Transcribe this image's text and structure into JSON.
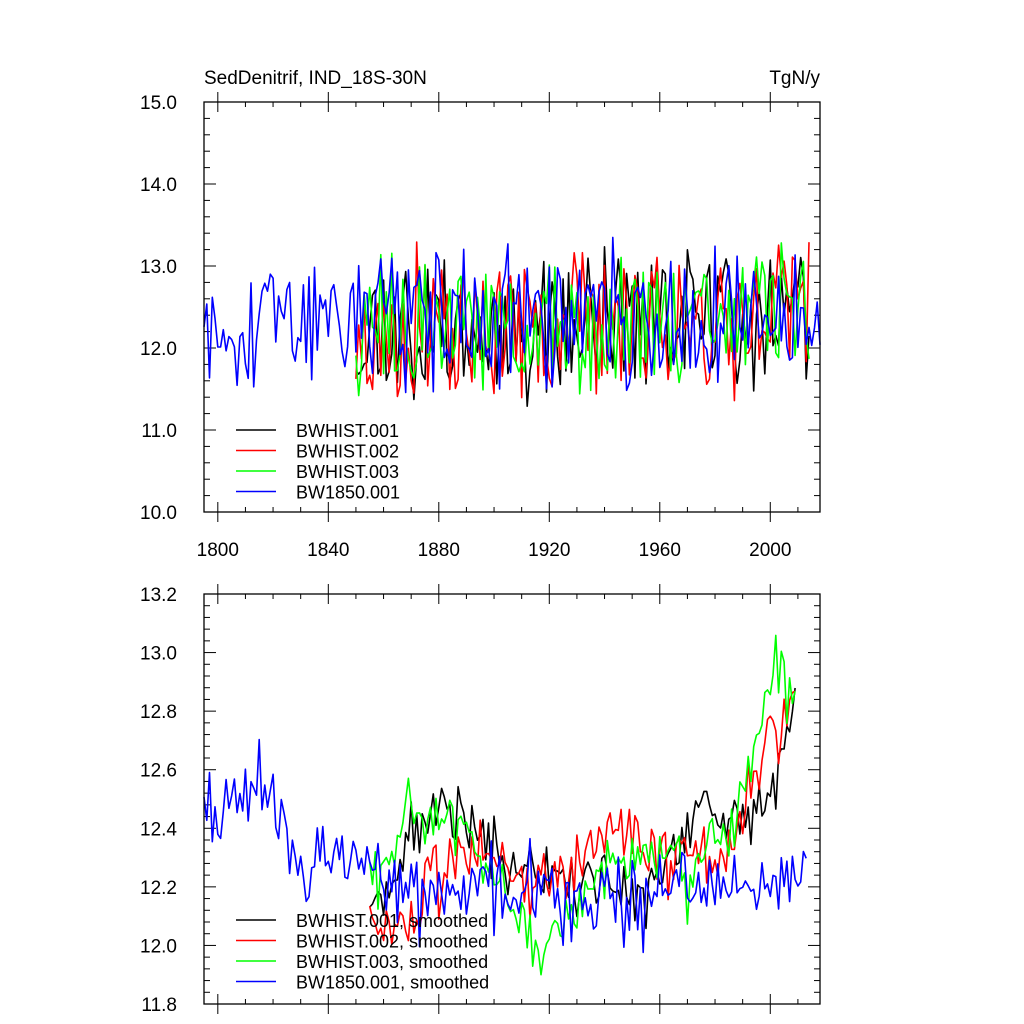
{
  "chart_data": [
    {
      "type": "line",
      "title_left": "SedDenitrif, IND_18S-30N",
      "title_right": "TgN/y",
      "xlabel": "",
      "ylabel": "",
      "xlim": [
        1795,
        2018
      ],
      "ylim": [
        10.0,
        15.0
      ],
      "xticks": [
        1800,
        1840,
        1880,
        1920,
        1960,
        2000
      ],
      "yticks": [
        "10.0",
        "11.0",
        "12.0",
        "13.0",
        "14.0",
        "15.0"
      ],
      "legend_position": "bottom-left",
      "series": [
        {
          "name": "BWHIST.001",
          "color": "#000000",
          "start": 1850,
          "end": 2014,
          "seed": 11,
          "mean": 12.25,
          "amp": 0.75,
          "trend": 0.25,
          "sd": 0.15
        },
        {
          "name": "BWHIST.002",
          "color": "#ff0000",
          "start": 1850,
          "end": 2014,
          "seed": 23,
          "mean": 12.2,
          "amp": 0.75,
          "trend": 0.3,
          "sd": 0.15
        },
        {
          "name": "BWHIST.003",
          "color": "#00ff00",
          "start": 1850,
          "end": 2014,
          "seed": 37,
          "mean": 12.2,
          "amp": 0.75,
          "trend": 0.25,
          "sd": 0.15
        },
        {
          "name": "BW1850.001",
          "color": "#0000ff",
          "start": 1795,
          "end": 2018,
          "seed": 53,
          "mean": 12.35,
          "amp": 0.72,
          "trend": 0.0,
          "sd": 0.15
        }
      ]
    },
    {
      "type": "line",
      "xlim": [
        1795,
        2018
      ],
      "ylim": [
        11.8,
        13.2
      ],
      "yticks": [
        "11.8",
        "12.0",
        "12.2",
        "12.4",
        "12.6",
        "12.8",
        "13.0",
        "13.2"
      ],
      "legend_position": "bottom-left",
      "series": [
        {
          "name": "BWHIST.001, smoothed",
          "color": "#000000",
          "start": 1855,
          "end": 2009,
          "seed": 71,
          "anchors": [
            [
              1855,
              12.15
            ],
            [
              1875,
              12.42
            ],
            [
              1885,
              12.5
            ],
            [
              1900,
              12.3
            ],
            [
              1920,
              12.22
            ],
            [
              1940,
              12.22
            ],
            [
              1955,
              12.15
            ],
            [
              1965,
              12.3
            ],
            [
              1975,
              12.45
            ],
            [
              1985,
              12.42
            ],
            [
              1995,
              12.45
            ],
            [
              2002,
              12.55
            ],
            [
              2009,
              12.85
            ]
          ],
          "sd": 0.06
        },
        {
          "name": "BWHIST.002, smoothed",
          "color": "#ff0000",
          "start": 1855,
          "end": 2009,
          "seed": 83,
          "anchors": [
            [
              1855,
              12.1
            ],
            [
              1870,
              12.05
            ],
            [
              1885,
              12.3
            ],
            [
              1900,
              12.32
            ],
            [
              1915,
              12.2
            ],
            [
              1930,
              12.3
            ],
            [
              1945,
              12.42
            ],
            [
              1955,
              12.35
            ],
            [
              1970,
              12.3
            ],
            [
              1985,
              12.3
            ],
            [
              1995,
              12.6
            ],
            [
              2005,
              12.82
            ],
            [
              2009,
              12.85
            ]
          ],
          "sd": 0.06
        },
        {
          "name": "BWHIST.003, smoothed",
          "color": "#00ff00",
          "start": 1855,
          "end": 2009,
          "seed": 97,
          "anchors": [
            [
              1855,
              12.2
            ],
            [
              1870,
              12.4
            ],
            [
              1885,
              12.45
            ],
            [
              1900,
              12.2
            ],
            [
              1915,
              12.0
            ],
            [
              1925,
              12.05
            ],
            [
              1940,
              12.28
            ],
            [
              1955,
              12.3
            ],
            [
              1970,
              12.25
            ],
            [
              1985,
              12.38
            ],
            [
              1995,
              12.7
            ],
            [
              2002,
              12.95
            ],
            [
              2009,
              12.85
            ]
          ],
          "sd": 0.06
        },
        {
          "name": "BW1850.001, smoothed",
          "color": "#0000ff",
          "start": 1795,
          "end": 2013,
          "seed": 109,
          "anchors": [
            [
              1795,
              12.45
            ],
            [
              1805,
              12.48
            ],
            [
              1815,
              12.55
            ],
            [
              1825,
              12.4
            ],
            [
              1830,
              12.2
            ],
            [
              1840,
              12.3
            ],
            [
              1850,
              12.35
            ],
            [
              1860,
              12.22
            ],
            [
              1875,
              12.2
            ],
            [
              1890,
              12.22
            ],
            [
              1905,
              12.18
            ],
            [
              1920,
              12.2
            ],
            [
              1935,
              12.12
            ],
            [
              1945,
              12.15
            ],
            [
              1960,
              12.2
            ],
            [
              1980,
              12.22
            ],
            [
              1995,
              12.2
            ],
            [
              2005,
              12.15
            ],
            [
              2013,
              12.25
            ]
          ],
          "sd": 0.07
        }
      ]
    }
  ]
}
